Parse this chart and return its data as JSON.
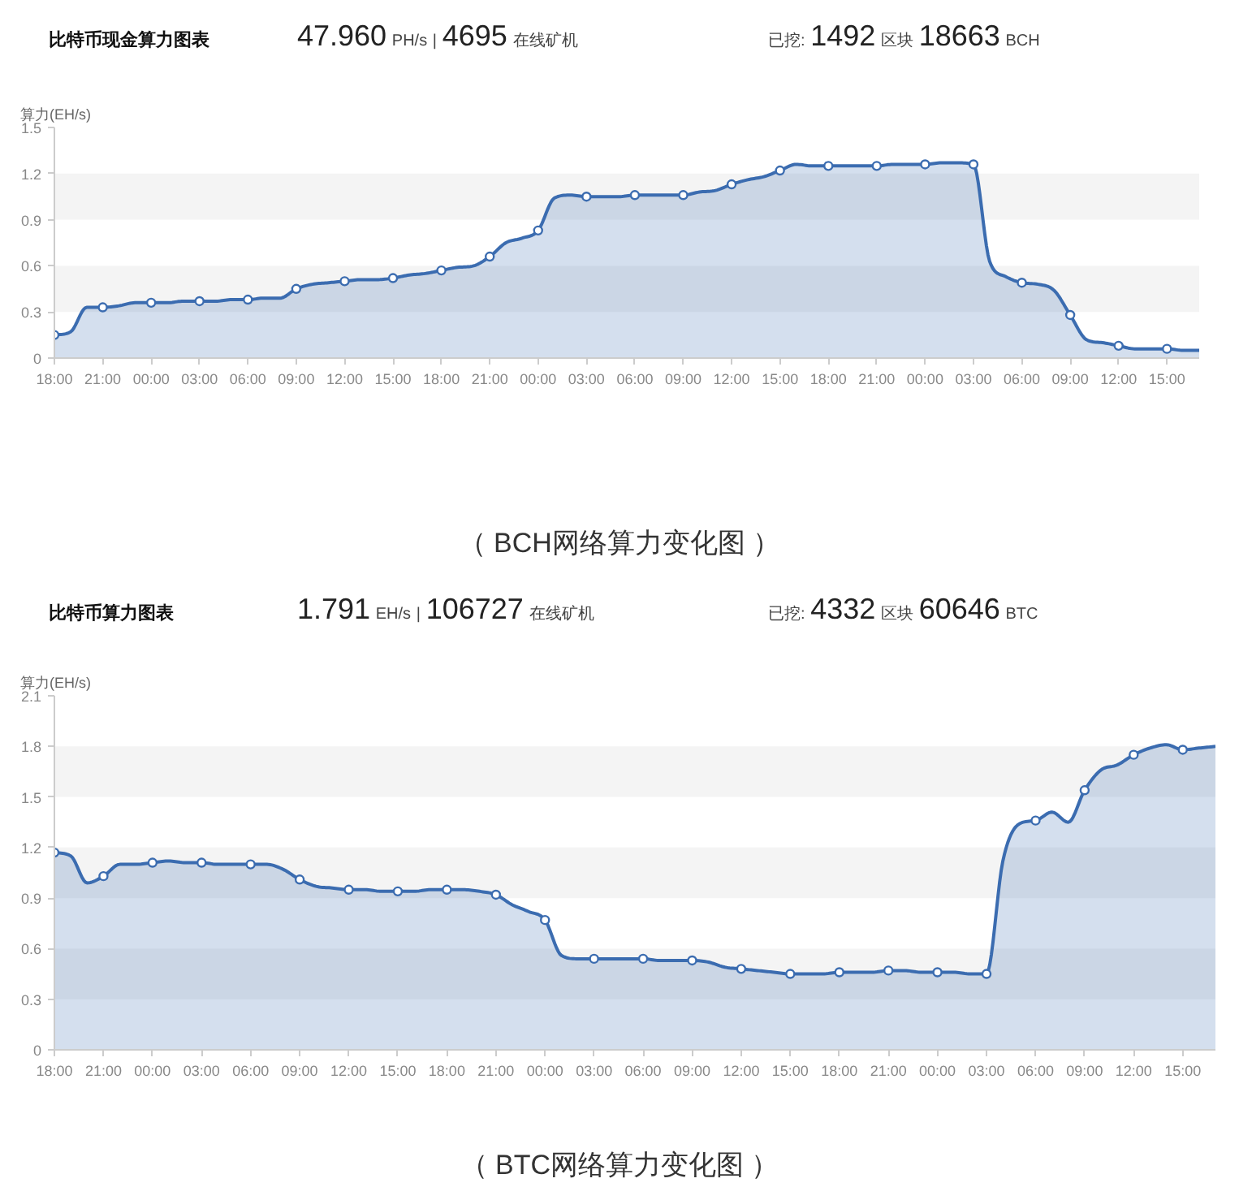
{
  "chart_data": [
    {
      "type": "area",
      "title": "比特币现金算力图表",
      "ylabel": "算力(EH/s)",
      "annotations": [
        "47.960 PH/s | 4695 在线矿机",
        "已挖: 1492 区块 18663 BCH",
        "（ BCH网络算力变化图 ）"
      ],
      "categories": [
        "18:00",
        null,
        null,
        "21:00",
        null,
        null,
        "00:00",
        null,
        null,
        "03:00",
        null,
        null,
        "06:00",
        null,
        null,
        "09:00",
        null,
        null,
        "12:00",
        null,
        null,
        "15:00",
        null,
        null,
        "18:00",
        null,
        null,
        "21:00",
        null,
        null,
        "00:00",
        null,
        null,
        "03:00",
        null,
        null,
        "06:00",
        null,
        null,
        "09:00",
        null,
        null,
        "12:00",
        null,
        null,
        "15:00",
        null,
        null,
        "18:00",
        null,
        null,
        "21:00",
        null,
        null,
        "00:00",
        null,
        null,
        "03:00",
        null,
        null,
        "06:00",
        null,
        null,
        "09:00",
        null,
        null,
        "12:00",
        null,
        null,
        "15:00",
        null,
        null
      ],
      "ylim": [
        0,
        1.5
      ],
      "yticks": [
        0,
        0.3,
        0.6,
        0.9,
        1.2,
        1.5
      ],
      "bands": [
        {
          "axis": "y",
          "from": 0.3,
          "to": 0.6,
          "color": "#f4f4f4"
        },
        {
          "axis": "y",
          "from": 0.9,
          "to": 1.2,
          "color": "#f4f4f4"
        }
      ],
      "series": [
        {
          "color": "#3b6cb0",
          "values": [
            0.15,
            0.17,
            0.33,
            0.33,
            0.34,
            0.36,
            0.36,
            0.36,
            0.37,
            0.37,
            0.37,
            0.38,
            0.38,
            0.39,
            0.39,
            0.45,
            0.48,
            0.49,
            0.5,
            0.51,
            0.51,
            0.52,
            0.54,
            0.55,
            0.57,
            0.59,
            0.6,
            0.66,
            0.75,
            0.78,
            0.83,
            1.04,
            1.06,
            1.05,
            1.05,
            1.05,
            1.06,
            1.06,
            1.06,
            1.06,
            1.08,
            1.09,
            1.13,
            1.16,
            1.18,
            1.22,
            1.26,
            1.25,
            1.25,
            1.25,
            1.25,
            1.25,
            1.26,
            1.26,
            1.26,
            1.27,
            1.27,
            1.26,
            0.63,
            0.53,
            0.49,
            0.48,
            0.44,
            0.28,
            0.12,
            0.1,
            0.08,
            0.06,
            0.06,
            0.06,
            0.05,
            0.05
          ]
        },
        {
          "type": "scatter",
          "marker": "circle",
          "color": "#3b6cb0",
          "values": [
            0.15,
            null,
            null,
            0.33,
            null,
            null,
            0.36,
            null,
            null,
            0.37,
            null,
            null,
            0.38,
            null,
            null,
            0.45,
            null,
            null,
            0.5,
            null,
            null,
            0.52,
            null,
            null,
            0.57,
            null,
            null,
            0.66,
            null,
            null,
            0.83,
            null,
            null,
            1.05,
            null,
            null,
            1.06,
            null,
            null,
            1.06,
            null,
            null,
            1.13,
            null,
            null,
            1.22,
            null,
            null,
            1.25,
            null,
            null,
            1.25,
            null,
            null,
            1.26,
            null,
            null,
            1.26,
            null,
            null,
            0.49,
            null,
            null,
            0.28,
            null,
            null,
            0.08,
            null,
            null,
            0.06,
            null,
            null
          ]
        }
      ]
    },
    {
      "type": "area",
      "title": "比特币算力图表",
      "ylabel": "算力(EH/s)",
      "annotations": [
        "1.791 EH/s | 106727 在线矿机",
        "已挖: 4332 区块 60646 BTC",
        "（ BTC网络算力变化图 ）"
      ],
      "categories": [
        "18:00",
        null,
        null,
        "21:00",
        null,
        null,
        "00:00",
        null,
        null,
        "03:00",
        null,
        null,
        "06:00",
        null,
        null,
        "09:00",
        null,
        null,
        "12:00",
        null,
        null,
        "15:00",
        null,
        null,
        "18:00",
        null,
        null,
        "21:00",
        null,
        null,
        "00:00",
        null,
        null,
        "03:00",
        null,
        null,
        "06:00",
        null,
        null,
        "09:00",
        null,
        null,
        "12:00",
        null,
        null,
        "15:00",
        null,
        null,
        "18:00",
        null,
        null,
        "21:00",
        null,
        null,
        "00:00",
        null,
        null,
        "03:00",
        null,
        null,
        "06:00",
        null,
        null,
        "09:00",
        null,
        null,
        "12:00",
        null,
        null,
        "15:00",
        null,
        null
      ],
      "ylim": [
        0,
        2.1
      ],
      "yticks": [
        0,
        0.3,
        0.6,
        0.9,
        1.2,
        1.5,
        1.8,
        2.1
      ],
      "bands": [
        {
          "axis": "y",
          "from": 0.3,
          "to": 0.6,
          "color": "#f4f4f4"
        },
        {
          "axis": "y",
          "from": 0.9,
          "to": 1.2,
          "color": "#f4f4f4"
        },
        {
          "axis": "y",
          "from": 1.5,
          "to": 1.8,
          "color": "#f4f4f4"
        }
      ],
      "series": [
        {
          "color": "#3b6cb0",
          "values": [
            1.17,
            1.15,
            0.99,
            1.03,
            1.1,
            1.1,
            1.11,
            1.12,
            1.11,
            1.11,
            1.1,
            1.1,
            1.1,
            1.1,
            1.07,
            1.01,
            0.97,
            0.96,
            0.95,
            0.95,
            0.94,
            0.94,
            0.94,
            0.95,
            0.95,
            0.95,
            0.94,
            0.92,
            0.86,
            0.82,
            0.77,
            0.56,
            0.54,
            0.54,
            0.54,
            0.54,
            0.54,
            0.53,
            0.53,
            0.53,
            0.52,
            0.49,
            0.48,
            0.47,
            0.46,
            0.45,
            0.45,
            0.45,
            0.46,
            0.46,
            0.46,
            0.47,
            0.47,
            0.46,
            0.46,
            0.46,
            0.45,
            0.45,
            1.12,
            1.34,
            1.36,
            1.41,
            1.35,
            1.54,
            1.66,
            1.69,
            1.75,
            1.79,
            1.81,
            1.78,
            1.79,
            1.8
          ]
        },
        {
          "type": "scatter",
          "marker": "circle",
          "color": "#3b6cb0",
          "values": [
            1.17,
            null,
            null,
            1.03,
            null,
            null,
            1.11,
            null,
            null,
            1.11,
            null,
            null,
            1.1,
            null,
            null,
            1.01,
            null,
            null,
            0.95,
            null,
            null,
            0.94,
            null,
            null,
            0.95,
            null,
            null,
            0.92,
            null,
            null,
            0.77,
            null,
            null,
            0.54,
            null,
            null,
            0.54,
            null,
            null,
            0.53,
            null,
            null,
            0.48,
            null,
            null,
            0.45,
            null,
            null,
            0.46,
            null,
            null,
            0.47,
            null,
            null,
            0.46,
            null,
            null,
            0.45,
            null,
            null,
            1.36,
            null,
            null,
            1.54,
            null,
            null,
            1.75,
            null,
            null,
            1.78,
            null,
            null
          ]
        }
      ]
    }
  ]
}
